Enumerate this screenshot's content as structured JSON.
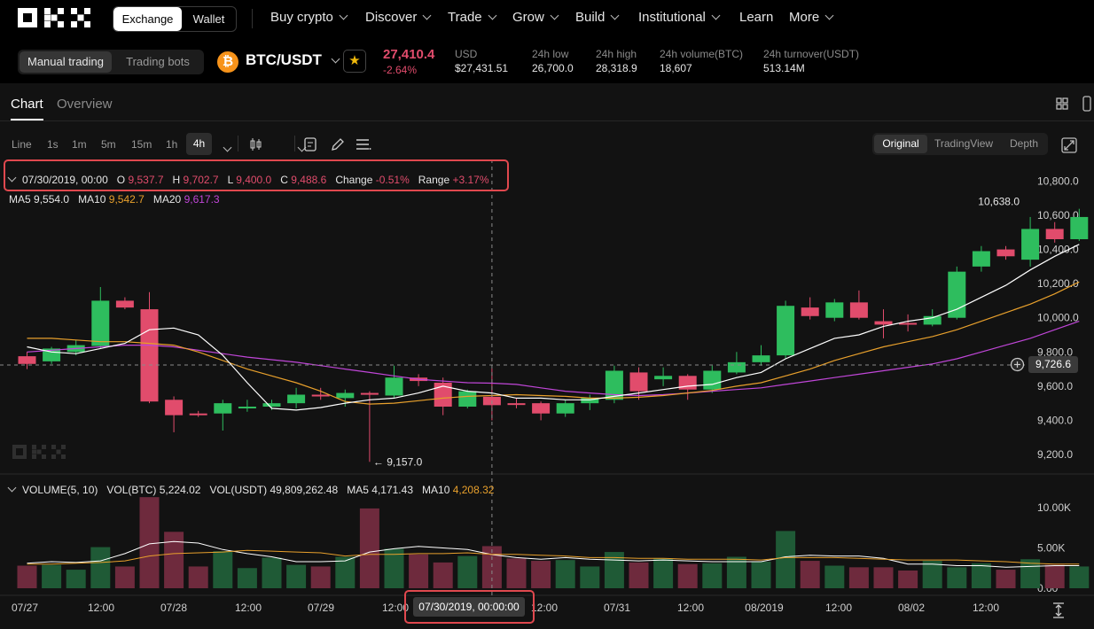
{
  "nav": {
    "exchange_label": "Exchange",
    "wallet_label": "Wallet",
    "items": [
      "Buy crypto",
      "Discover",
      "Trade",
      "Grow",
      "Build",
      "Institutional",
      "Learn",
      "More"
    ]
  },
  "ticker": {
    "mode_manual": "Manual trading",
    "mode_bots": "Trading bots",
    "coin_glyph": "₿",
    "pair": "BTC/USDT",
    "last_price": "27,410.4",
    "change_pct": "-2.64%",
    "stats": [
      {
        "label": "USD",
        "value": "$27,431.51"
      },
      {
        "label": "24h low",
        "value": "26,700.0"
      },
      {
        "label": "24h high",
        "value": "28,318.9"
      },
      {
        "label": "24h volume(BTC)",
        "value": "18,607"
      },
      {
        "label": "24h turnover(USDT)",
        "value": "513.14M"
      }
    ]
  },
  "tabs": {
    "chart": "Chart",
    "overview": "Overview"
  },
  "intervals": [
    "Line",
    "1s",
    "1m",
    "5m",
    "15m",
    "1h",
    "4h"
  ],
  "active_interval": "4h",
  "views": {
    "original": "Original",
    "tradingview": "TradingView",
    "depth": "Depth"
  },
  "ohlc": {
    "date": "07/30/2019, 00:00",
    "o_label": "O",
    "o": "9,537.7",
    "h_label": "H",
    "h": "9,702.7",
    "l_label": "L",
    "l": "9,400.0",
    "c_label": "C",
    "c": "9,488.6",
    "change_label": "Change",
    "change": "-0.51%",
    "range_label": "Range",
    "range": "+3.17%"
  },
  "ma": {
    "ma5_label": "MA5",
    "ma5": "9,554.0",
    "ma10_label": "MA10",
    "ma10": "9,542.7",
    "ma20_label": "MA20",
    "ma20": "9,617.3"
  },
  "volume_legend": {
    "title": "VOLUME(5, 10)",
    "vol_btc_label": "VOL(BTC)",
    "vol_btc": "5,224.02",
    "vol_usdt_label": "VOL(USDT)",
    "vol_usdt": "49,809,262.48",
    "ma5_label": "MA5",
    "ma5": "4,171.43",
    "ma10_label": "MA10",
    "ma10": "4,208.32"
  },
  "crosshair_time": "07/30/2019, 00:00:00",
  "crosshair_price": "9,726.6",
  "max_price_label": "10,638.0",
  "min_price_label": "← 9,157.0",
  "colors": {
    "up": "#2ebd5e",
    "down": "#e14c6c",
    "ma5": "#ffffff",
    "ma10": "#e8a02c",
    "ma20": "#c046d8",
    "accent": "#e0484e"
  },
  "chart_data": {
    "type": "candlestick",
    "price_axis_ticks": [
      "10,800.0",
      "10,600.0",
      "10,400.0",
      "10,200.0",
      "10,000.0",
      "9,800.0",
      "9,600.0",
      "9,400.0",
      "9,200.0"
    ],
    "price_ylim": [
      9100,
      10880
    ],
    "volume_axis_ticks": [
      "10.00K",
      "5.00K",
      "0.00"
    ],
    "volume_ylim": [
      0,
      11500
    ],
    "x_ticks": [
      "07/27",
      "12:00",
      "07/28",
      "12:00",
      "07/29",
      "12:00",
      "",
      "12:00",
      "07/31",
      "12:00",
      "08/2019",
      "12:00",
      "08/02",
      "12:00"
    ],
    "candles": [
      {
        "o": 9775,
        "h": 9800,
        "l": 9700,
        "c": 9730
      },
      {
        "o": 9745,
        "h": 9830,
        "l": 9730,
        "c": 9820
      },
      {
        "o": 9800,
        "h": 9870,
        "l": 9780,
        "c": 9840
      },
      {
        "o": 9835,
        "h": 10180,
        "l": 9820,
        "c": 10100
      },
      {
        "o": 10100,
        "h": 10120,
        "l": 10050,
        "c": 10060
      },
      {
        "o": 10050,
        "h": 10150,
        "l": 9500,
        "c": 9510
      },
      {
        "o": 9520,
        "h": 9540,
        "l": 9330,
        "c": 9430
      },
      {
        "o": 9440,
        "h": 9455,
        "l": 9420,
        "c": 9430
      },
      {
        "o": 9440,
        "h": 9520,
        "l": 9340,
        "c": 9500
      },
      {
        "o": 9480,
        "h": 9520,
        "l": 9450,
        "c": 9480
      },
      {
        "o": 9480,
        "h": 9520,
        "l": 9460,
        "c": 9500
      },
      {
        "o": 9500,
        "h": 9590,
        "l": 9470,
        "c": 9550
      },
      {
        "o": 9550,
        "h": 9590,
        "l": 9520,
        "c": 9540
      },
      {
        "o": 9530,
        "h": 9580,
        "l": 9480,
        "c": 9560
      },
      {
        "o": 9560,
        "h": 9570,
        "l": 9157,
        "c": 9550
      },
      {
        "o": 9545,
        "h": 9720,
        "l": 9530,
        "c": 9650
      },
      {
        "o": 9650,
        "h": 9670,
        "l": 9600,
        "c": 9630
      },
      {
        "o": 9620,
        "h": 9650,
        "l": 9430,
        "c": 9480
      },
      {
        "o": 9480,
        "h": 9580,
        "l": 9470,
        "c": 9570
      },
      {
        "o": 9537.7,
        "h": 9702.7,
        "l": 9400,
        "c": 9488.6
      },
      {
        "o": 9500,
        "h": 9530,
        "l": 9470,
        "c": 9490
      },
      {
        "o": 9500,
        "h": 9510,
        "l": 9400,
        "c": 9440
      },
      {
        "o": 9440,
        "h": 9520,
        "l": 9420,
        "c": 9500
      },
      {
        "o": 9500,
        "h": 9550,
        "l": 9460,
        "c": 9530
      },
      {
        "o": 9520,
        "h": 9720,
        "l": 9500,
        "c": 9690
      },
      {
        "o": 9680,
        "h": 9710,
        "l": 9520,
        "c": 9570
      },
      {
        "o": 9640,
        "h": 9710,
        "l": 9600,
        "c": 9660
      },
      {
        "o": 9660,
        "h": 9670,
        "l": 9520,
        "c": 9580
      },
      {
        "o": 9580,
        "h": 9720,
        "l": 9560,
        "c": 9690
      },
      {
        "o": 9680,
        "h": 9800,
        "l": 9670,
        "c": 9740
      },
      {
        "o": 9740,
        "h": 9840,
        "l": 9720,
        "c": 9780
      },
      {
        "o": 9780,
        "h": 10100,
        "l": 9760,
        "c": 10070
      },
      {
        "o": 10060,
        "h": 10120,
        "l": 9990,
        "c": 10010
      },
      {
        "o": 10000,
        "h": 10110,
        "l": 9980,
        "c": 10090
      },
      {
        "o": 10090,
        "h": 10160,
        "l": 9990,
        "c": 10000
      },
      {
        "o": 9980,
        "h": 10050,
        "l": 9880,
        "c": 9960
      },
      {
        "o": 9970,
        "h": 10020,
        "l": 9920,
        "c": 9960
      },
      {
        "o": 9960,
        "h": 10050,
        "l": 9950,
        "c": 10010
      },
      {
        "o": 10000,
        "h": 10300,
        "l": 9990,
        "c": 10270
      },
      {
        "o": 10300,
        "h": 10420,
        "l": 10270,
        "c": 10390
      },
      {
        "o": 10400,
        "h": 10420,
        "l": 10340,
        "c": 10360
      },
      {
        "o": 10340,
        "h": 10590,
        "l": 10300,
        "c": 10520
      },
      {
        "o": 10520,
        "h": 10560,
        "l": 10440,
        "c": 10460
      },
      {
        "o": 10460,
        "h": 10638,
        "l": 10450,
        "c": 10590
      }
    ],
    "volume": [
      2800,
      2900,
      2300,
      5100,
      2700,
      11300,
      7000,
      2700,
      4600,
      2500,
      3800,
      2900,
      2700,
      3900,
      9900,
      4900,
      4200,
      3200,
      4000,
      5224.02,
      3700,
      3400,
      3500,
      2700,
      4500,
      3200,
      3700,
      3000,
      3100,
      3900,
      3300,
      7100,
      3400,
      2800,
      2600,
      2600,
      2200,
      3400,
      2600,
      3100,
      2300,
      3600,
      2900,
      2700
    ],
    "ma5": [
      9830,
      9800,
      9790,
      9820,
      9850,
      9930,
      9940,
      9900,
      9780,
      9620,
      9470,
      9460,
      9475,
      9500,
      9520,
      9530,
      9560,
      9600,
      9570,
      9560,
      9530,
      9530,
      9520,
      9520,
      9540,
      9560,
      9580,
      9600,
      9610,
      9650,
      9680,
      9760,
      9820,
      9880,
      9900,
      9950,
      9980,
      10000,
      10050,
      10120,
      10190,
      10280,
      10360,
      10430
    ],
    "ma10": [
      9880,
      9880,
      9870,
      9860,
      9860,
      9850,
      9840,
      9800,
      9750,
      9700,
      9660,
      9620,
      9570,
      9510,
      9495,
      9500,
      9515,
      9530,
      9540,
      9545,
      9550,
      9545,
      9540,
      9530,
      9530,
      9535,
      9545,
      9560,
      9575,
      9600,
      9620,
      9660,
      9700,
      9750,
      9790,
      9830,
      9860,
      9890,
      9930,
      9980,
      10030,
      10080,
      10140,
      10210
    ],
    "ma20": [
      9800,
      9810,
      9820,
      9830,
      9840,
      9840,
      9830,
      9810,
      9790,
      9770,
      9755,
      9740,
      9720,
      9700,
      9680,
      9660,
      9640,
      9630,
      9620,
      9617.3,
      9610,
      9590,
      9570,
      9560,
      9550,
      9545,
      9550,
      9560,
      9570,
      9580,
      9590,
      9610,
      9630,
      9650,
      9670,
      9690,
      9710,
      9730,
      9760,
      9800,
      9840,
      9880,
      9930,
      9980
    ],
    "vol_ma5": [
      3100,
      3300,
      3200,
      3400,
      4300,
      5500,
      5800,
      5600,
      4800,
      4300,
      3900,
      3300,
      3300,
      3400,
      4500,
      4900,
      5200,
      5000,
      4800,
      4171.43,
      3800,
      3600,
      3800,
      3600,
      3500,
      3400,
      3500,
      3400,
      3300,
      3300,
      3300,
      3900,
      4100,
      4000,
      4000,
      3700,
      3000,
      3000,
      2800,
      2800,
      2600,
      2700,
      2800,
      2800
    ],
    "vol_ma10": [
      3000,
      3000,
      3100,
      3200,
      3400,
      4000,
      4300,
      4400,
      4500,
      4700,
      4600,
      4500,
      4400,
      4000,
      4200,
      4200,
      4300,
      4300,
      4400,
      4208.32,
      4200,
      4100,
      4000,
      3800,
      3800,
      3700,
      3700,
      3600,
      3600,
      3600,
      3500,
      3800,
      3800,
      3800,
      3700,
      3600,
      3500,
      3500,
      3500,
      3400,
      3300,
      3100,
      3000,
      3000
    ]
  }
}
